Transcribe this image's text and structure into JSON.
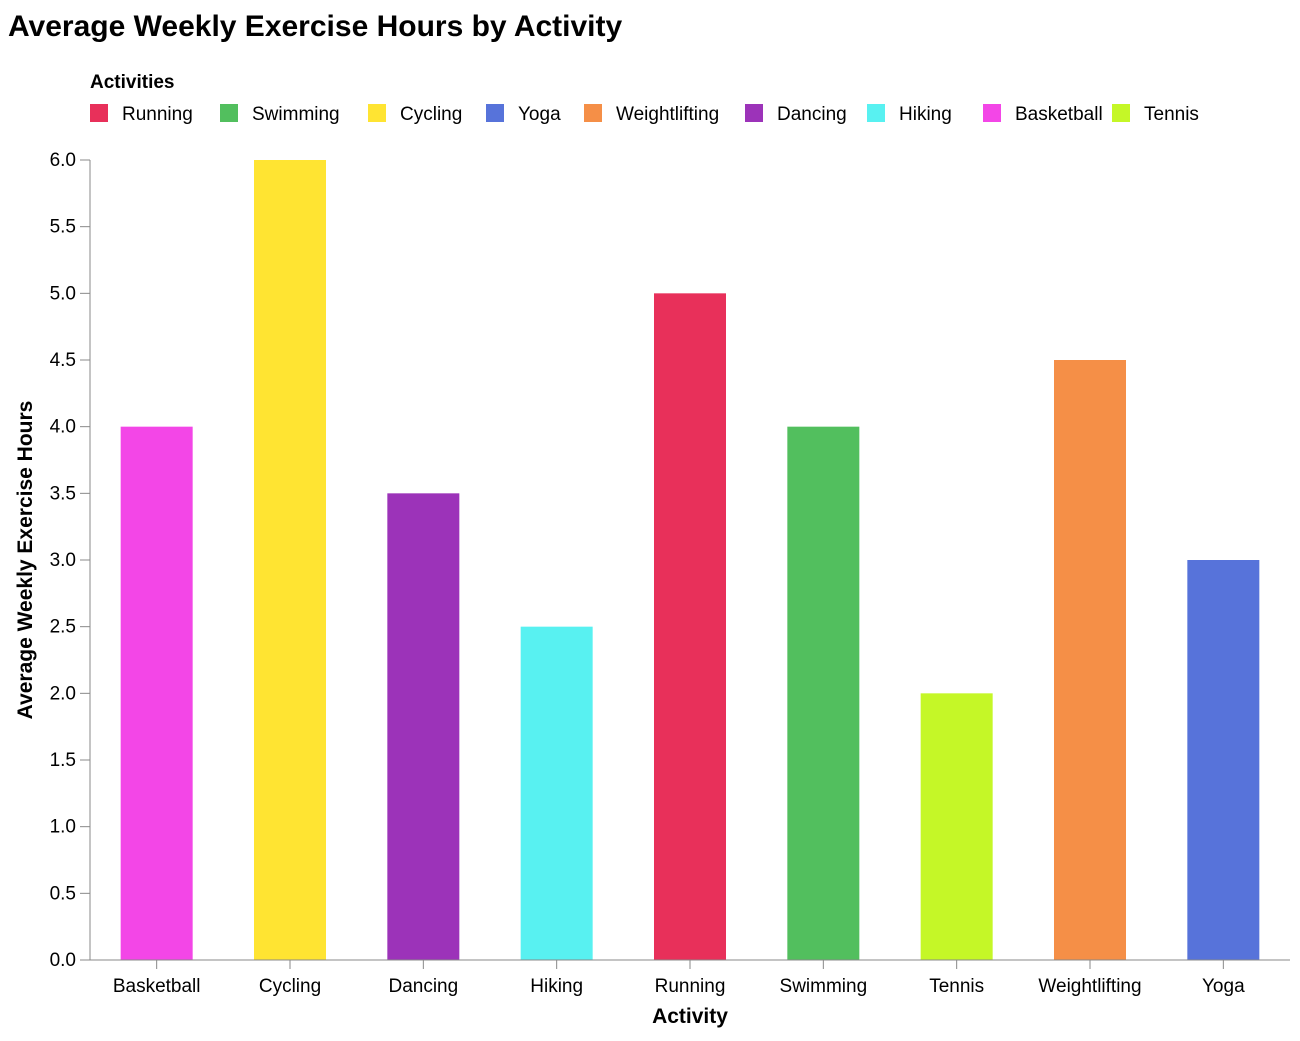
{
  "chart_data": {
    "type": "bar",
    "title": "Average Weekly Exercise Hours by Activity",
    "xlabel": "Activity",
    "ylabel": "Average Weekly Exercise Hours",
    "ylim": [
      0,
      6
    ],
    "yticks": [
      "0.0",
      "0.5",
      "1.0",
      "1.5",
      "2.0",
      "2.5",
      "3.0",
      "3.5",
      "4.0",
      "4.5",
      "5.0",
      "5.5",
      "6.0"
    ],
    "grid": false,
    "legend": {
      "title": "Activities",
      "placement": "top",
      "entries": [
        {
          "name": "Running",
          "color": "#e8305a"
        },
        {
          "name": "Swimming",
          "color": "#52bf5e"
        },
        {
          "name": "Cycling",
          "color": "#ffe432"
        },
        {
          "name": "Yoga",
          "color": "#5773da"
        },
        {
          "name": "Weightlifting",
          "color": "#f58f47"
        },
        {
          "name": "Dancing",
          "color": "#9c33b9"
        },
        {
          "name": "Hiking",
          "color": "#58f1f1"
        },
        {
          "name": "Basketball",
          "color": "#f346e7"
        },
        {
          "name": "Tennis",
          "color": "#c5f727"
        }
      ]
    },
    "categories": [
      "Basketball",
      "Cycling",
      "Dancing",
      "Hiking",
      "Running",
      "Swimming",
      "Tennis",
      "Weightlifting",
      "Yoga"
    ],
    "values": [
      4.0,
      6.0,
      3.5,
      2.5,
      5.0,
      4.0,
      2.0,
      4.5,
      3.0
    ],
    "colors": [
      "#f346e7",
      "#ffe432",
      "#9c33b9",
      "#58f1f1",
      "#e8305a",
      "#52bf5e",
      "#c5f727",
      "#f58f47",
      "#5773da"
    ]
  }
}
